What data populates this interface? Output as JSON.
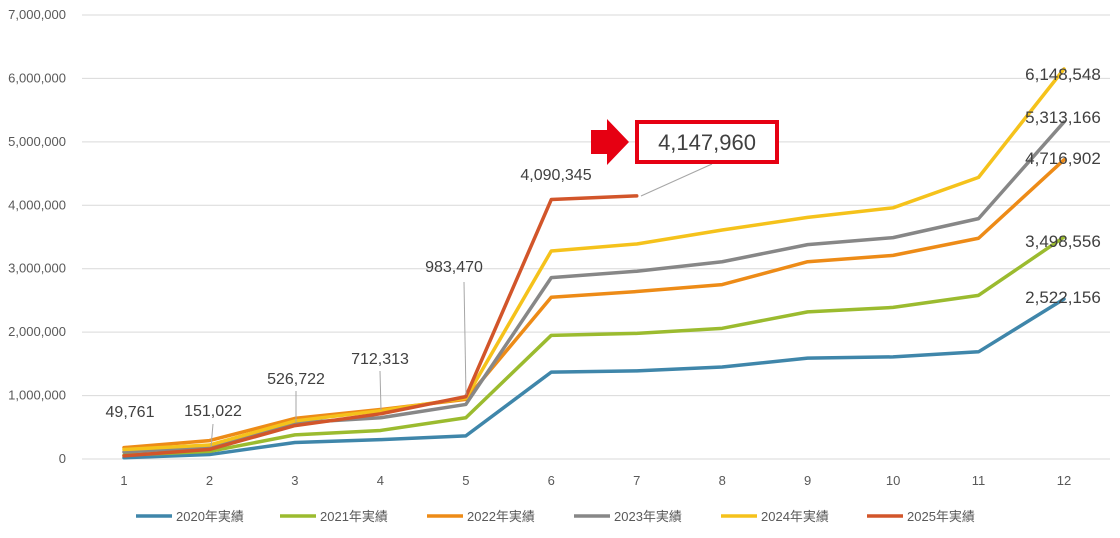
{
  "chart_data": {
    "type": "line",
    "title": "",
    "xlabel": "",
    "ylabel": "",
    "x": [
      "1",
      "2",
      "3",
      "4",
      "5",
      "6",
      "7",
      "8",
      "9",
      "10",
      "11",
      "12"
    ],
    "ylim": [
      0,
      7000000
    ],
    "yticks": [
      0,
      1000000,
      2000000,
      3000000,
      4000000,
      5000000,
      6000000,
      7000000
    ],
    "ytick_labels": [
      "0",
      "1,000,000",
      "2,000,000",
      "3,000,000",
      "4,000,000",
      "5,000,000",
      "6,000,000",
      "7,000,000"
    ],
    "grid": true,
    "legend_position": "bottom",
    "series": [
      {
        "name": "2020年実績",
        "color": "#3F86AA",
        "values": [
          20000,
          70000,
          260000,
          305000,
          365000,
          1370000,
          1390000,
          1450000,
          1590000,
          1610000,
          1690000,
          2522156
        ],
        "end_label": "2,522,156"
      },
      {
        "name": "2021年実績",
        "color": "#9BBB2F",
        "values": [
          60000,
          120000,
          380000,
          450000,
          650000,
          1950000,
          1980000,
          2060000,
          2320000,
          2390000,
          2580000,
          3498556
        ],
        "end_label": "3,498,556"
      },
      {
        "name": "2022年実績",
        "color": "#ED8B17",
        "values": [
          180000,
          290000,
          640000,
          780000,
          940000,
          2550000,
          2640000,
          2750000,
          3110000,
          3210000,
          3480000,
          4716902
        ],
        "end_label": "4,716,902"
      },
      {
        "name": "2023年実績",
        "color": "#878787",
        "values": [
          110000,
          190000,
          570000,
          650000,
          860000,
          2860000,
          2960000,
          3110000,
          3380000,
          3490000,
          3790000,
          5313166
        ],
        "end_label": "5,313,166"
      },
      {
        "name": "2024年実績",
        "color": "#F5C21B",
        "values": [
          150000,
          220000,
          600000,
          760000,
          960000,
          3280000,
          3390000,
          3610000,
          3810000,
          3960000,
          4440000,
          6148548
        ],
        "end_label": "6,148,548"
      },
      {
        "name": "2025年実績",
        "color": "#D2552A",
        "values": [
          49761,
          151022,
          526722,
          712313,
          983470,
          4090345,
          4147960,
          null,
          null,
          null,
          null,
          null
        ],
        "point_labels": [
          "49,761",
          "151,022",
          "526,722",
          "712,313",
          "983,470",
          "4,090,345"
        ]
      }
    ],
    "callout": {
      "text": "4,147,960",
      "border_color": "#E60012",
      "arrow_color": "#E60012"
    }
  }
}
